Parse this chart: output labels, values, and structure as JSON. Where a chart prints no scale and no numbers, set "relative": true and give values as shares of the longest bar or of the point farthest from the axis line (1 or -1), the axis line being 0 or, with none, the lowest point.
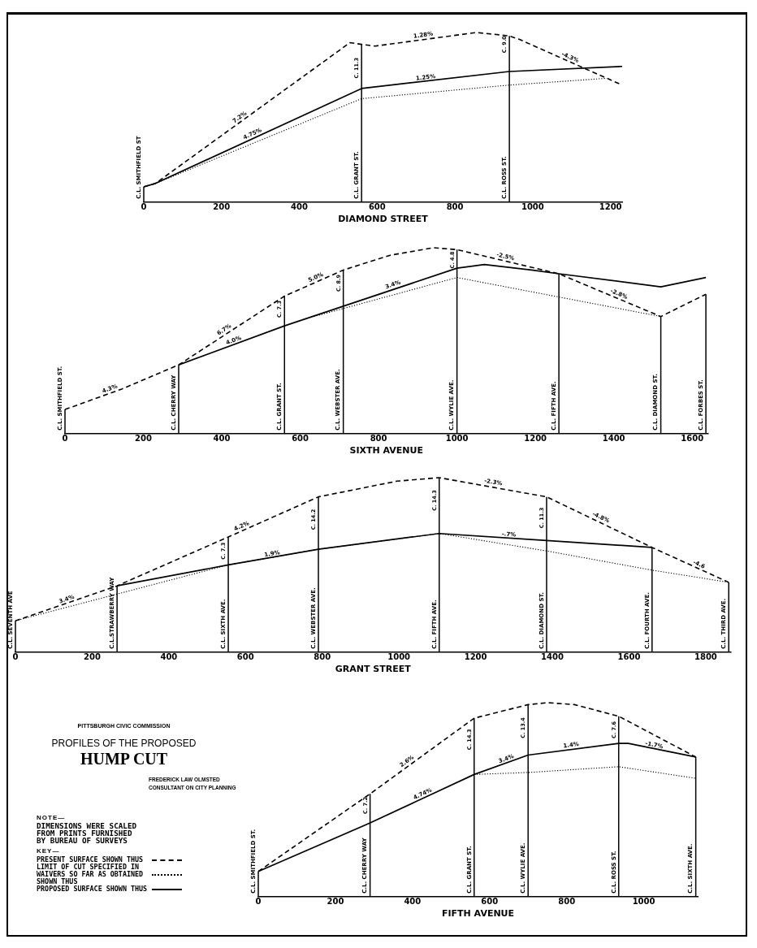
{
  "chart_data": [
    {
      "type": "line",
      "xlabel": "DIAMOND STREET",
      "relative": true,
      "xlim": [
        0,
        1230
      ],
      "xticks": [
        0,
        200,
        400,
        600,
        800,
        1000,
        1200
      ],
      "tick_labels": "x",
      "marker": "none",
      "series": [
        {
          "color": "#000000",
          "line_style": "dashed",
          "x": [
            0,
            30,
            530,
            560,
            595,
            855,
            940,
            965,
            1230
          ],
          "values": [
            0.09,
            0.11,
            0.94,
            0.93,
            0.92,
            1,
            0.98,
            0.96,
            0.69
          ]
        },
        {
          "color": "#000000",
          "line_style": "dotted",
          "x": [
            0,
            30,
            560,
            940,
            1190
          ],
          "values": [
            0.09,
            0.11,
            0.61,
            0.69,
            0.73
          ]
        },
        {
          "color": "#000000",
          "line_style": "solid",
          "x": [
            0,
            30,
            560,
            940,
            1230
          ],
          "values": [
            0.09,
            0.11,
            0.67,
            0.77,
            0.8
          ]
        }
      ],
      "ref_lines": [
        {
          "axis": "x",
          "value": 0,
          "label": "C.L. SMITHFIELD ST"
        },
        {
          "axis": "x",
          "value": 560,
          "label": "C.L. GRANT ST."
        },
        {
          "axis": "x",
          "value": 940,
          "label": "C.L. ROSS ST."
        }
      ],
      "annotations": [
        {
          "text": "7.2%",
          "x": 253,
          "y": 0.48
        },
        {
          "text": "4.75%",
          "x": 284,
          "y": 0.38
        },
        {
          "text": "1.28%",
          "x": 720,
          "y": 0.96
        },
        {
          "text": "1.25%",
          "x": 726,
          "y": 0.71
        },
        {
          "text": "-4.3%",
          "x": 1092,
          "y": 0.83
        },
        {
          "text": "C. 11.3",
          "x": 560,
          "y": 0.79
        },
        {
          "text": "C. 9.0",
          "x": 940,
          "y": 0.93
        }
      ]
    },
    {
      "type": "line",
      "xlabel": "SIXTH AVENUE",
      "relative": true,
      "xlim": [
        0,
        1640
      ],
      "xticks": [
        0,
        200,
        400,
        600,
        800,
        1000,
        1200,
        1400,
        1600
      ],
      "tick_labels": "x",
      "marker": "none",
      "series": [
        {
          "color": "#000000",
          "line_style": "dashed",
          "x": [
            0,
            145,
            290,
            560,
            710,
            830,
            940,
            1000,
            1260,
            1520,
            1635
          ],
          "values": [
            0.13,
            0.24,
            0.37,
            0.74,
            0.88,
            0.96,
            1,
            0.99,
            0.86,
            0.63,
            0.75
          ]
        },
        {
          "color": "#000000",
          "line_style": "dotted",
          "x": [
            635,
            1000,
            1520
          ],
          "values": [
            0.63,
            0.84,
            0.63
          ]
        },
        {
          "color": "#000000",
          "line_style": "solid",
          "x": [
            290,
            560,
            1000,
            1070,
            1190,
            1260,
            1520,
            1635
          ],
          "values": [
            0.37,
            0.58,
            0.89,
            0.91,
            0.88,
            0.86,
            0.79,
            0.84
          ]
        }
      ],
      "ref_lines": [
        {
          "axis": "x",
          "value": 0,
          "label": "C.L. SMITHFIELD ST."
        },
        {
          "axis": "x",
          "value": 290,
          "label": "C.L. CHERRY WAY"
        },
        {
          "axis": "x",
          "value": 560,
          "label": "C.L. GRANT ST."
        },
        {
          "axis": "x",
          "value": 710,
          "label": "C.L. WEBSTER AVE."
        },
        {
          "axis": "x",
          "value": 1000,
          "label": "C.L. WYLIE AVE."
        },
        {
          "axis": "x",
          "value": 1260,
          "label": "C.L. FIFTH AVE."
        },
        {
          "axis": "x",
          "value": 1520,
          "label": "C.L. DIAMOND ST."
        },
        {
          "axis": "x",
          "value": 1635,
          "label": "C.L. FORBES ST."
        }
      ],
      "annotations": [
        {
          "text": "4.3%",
          "x": 118,
          "y": 0.22
        },
        {
          "text": "6.7%",
          "x": 412,
          "y": 0.54
        },
        {
          "text": "4.0%",
          "x": 434,
          "y": 0.48
        },
        {
          "text": "5.0%",
          "x": 644,
          "y": 0.82
        },
        {
          "text": "3.4%",
          "x": 840,
          "y": 0.78
        },
        {
          "text": "-2.5%",
          "x": 1121,
          "y": 0.93
        },
        {
          "text": "-2.8%",
          "x": 1409,
          "y": 0.73
        },
        {
          "text": "C. 7.3",
          "x": 560,
          "y": 0.67
        },
        {
          "text": "C. 8.9",
          "x": 710,
          "y": 0.81
        },
        {
          "text": "C. 4.8",
          "x": 1000,
          "y": 0.935
        }
      ]
    },
    {
      "type": "line",
      "xlabel": "GRANT STREET",
      "relative": true,
      "xlim": [
        0,
        1865
      ],
      "xticks": [
        0,
        200,
        400,
        600,
        800,
        1000,
        1200,
        1400,
        1600,
        1800
      ],
      "tick_labels": "x",
      "marker": "none",
      "series": [
        {
          "color": "#000000",
          "line_style": "dashed",
          "x": [
            0,
            265,
            555,
            790,
            995,
            1105,
            1385,
            1660,
            1860
          ],
          "values": [
            0.18,
            0.38,
            0.66,
            0.89,
            0.98,
            1,
            0.89,
            0.6,
            0.4
          ]
        },
        {
          "color": "#000000",
          "line_style": "dotted",
          "x": [
            0,
            555,
            790,
            1105,
            1385,
            1660,
            1860
          ],
          "values": [
            0.18,
            0.5,
            0.59,
            0.68,
            0.58,
            0.47,
            0.4
          ]
        },
        {
          "color": "#000000",
          "line_style": "solid",
          "x": [
            265,
            555,
            790,
            1105,
            1385,
            1660
          ],
          "values": [
            0.38,
            0.5,
            0.59,
            0.68,
            0.64,
            0.6
          ]
        }
      ],
      "ref_lines": [
        {
          "axis": "x",
          "value": 0,
          "label": "C.L. SEVENTH AVE"
        },
        {
          "axis": "x",
          "value": 265,
          "label": "C.L.STRAWBERRY WAY"
        },
        {
          "axis": "x",
          "value": 555,
          "label": "C.L. SIXTH AVE."
        },
        {
          "axis": "x",
          "value": 790,
          "label": "C.L. WEBSTER AVE."
        },
        {
          "axis": "x",
          "value": 1105,
          "label": "C.L. FIFTH AVE."
        },
        {
          "axis": "x",
          "value": 1385,
          "label": "C.L. DIAMOND ST."
        },
        {
          "axis": "x",
          "value": 1660,
          "label": "C.L. FOURTH AVE."
        },
        {
          "axis": "x",
          "value": 1860,
          "label": "C.L. THIRD AVE."
        }
      ],
      "annotations": [
        {
          "text": "3.4%",
          "x": 137,
          "y": 0.28
        },
        {
          "text": "4.2%",
          "x": 594,
          "y": 0.7
        },
        {
          "text": "1.9%",
          "x": 671,
          "y": 0.54
        },
        {
          "text": "-2.3%",
          "x": 1244,
          "y": 0.95
        },
        {
          "text": "-.7%",
          "x": 1286,
          "y": 0.65
        },
        {
          "text": "-4.8%",
          "x": 1522,
          "y": 0.75
        },
        {
          "text": "-4.6",
          "x": 1778,
          "y": 0.48
        },
        {
          "text": "C. 7.3",
          "x": 555,
          "y": 0.58
        },
        {
          "text": "C. 14.2",
          "x": 790,
          "y": 0.76
        },
        {
          "text": "C. 14.3",
          "x": 1105,
          "y": 0.87
        },
        {
          "text": "C. 11.3",
          "x": 1385,
          "y": 0.77
        }
      ]
    },
    {
      "type": "line",
      "title": "PROFILES OF THE PROPOSED HUMP CUT",
      "xlabel": "FIFTH AVENUE",
      "relative": true,
      "xlim": [
        0,
        1140
      ],
      "xticks": [
        0,
        200,
        400,
        600,
        800,
        1000
      ],
      "tick_labels": "x",
      "marker": "none",
      "legend": "left",
      "legend_title": "KEY—",
      "series": [
        {
          "name": "PRESENT SURFACE SHOWN THUS",
          "color": "#000000",
          "line_style": "dashed",
          "x": [
            0,
            290,
            560,
            700,
            750,
            820,
            935,
            1135
          ],
          "values": [
            0.13,
            0.53,
            0.92,
            0.99,
            1,
            0.99,
            0.93,
            0.72
          ]
        },
        {
          "name": "LIMIT OF CUT SPECIFIED IN WAIVERS SO FAR AS OBTAINED SHOWN THUS",
          "color": "#000000",
          "line_style": "dotted",
          "x": [
            560,
            700,
            935,
            1135
          ],
          "values": [
            0.63,
            0.64,
            0.67,
            0.61
          ]
        },
        {
          "name": "PROPOSED SURFACE SHOWN THUS",
          "color": "#000000",
          "line_style": "solid",
          "x": [
            0,
            290,
            560,
            700,
            935,
            960,
            1135
          ],
          "values": [
            0.13,
            0.38,
            0.63,
            0.73,
            0.79,
            0.79,
            0.72
          ]
        }
      ],
      "ref_lines": [
        {
          "axis": "x",
          "value": 0,
          "label": "C.L. SMITHFIELD ST."
        },
        {
          "axis": "x",
          "value": 290,
          "label": "C.L. CHERRY WAY"
        },
        {
          "axis": "x",
          "value": 560,
          "label": "C.L. GRANT ST."
        },
        {
          "axis": "x",
          "value": 700,
          "label": "C.L. WYLIE AVE."
        },
        {
          "axis": "x",
          "value": 935,
          "label": "C.L. ROSS ST."
        },
        {
          "axis": "x",
          "value": 1135,
          "label": "C.L. SIXTH AVE."
        }
      ],
      "annotations": [
        "PITTSBURGH CIVIC COMMISSION",
        "FREDERICK LAW OLMSTED CONSULTANT ON CITY PLANNING",
        "NOTE—",
        "DIMENSIONS WERE SCALED FROM PRINTS FURNISHED BY BUREAU OF SURVEYS",
        {
          "text": "2.6%",
          "x": 392,
          "y": 0.68
        },
        {
          "text": "4.74%",
          "x": 431,
          "y": 0.51
        },
        {
          "text": "3.4%",
          "x": 647,
          "y": 0.69
        },
        {
          "text": "1.4%",
          "x": 813,
          "y": 0.76
        },
        {
          "text": "-1.7%",
          "x": 1025,
          "y": 0.76
        },
        {
          "text": "C. 7.2",
          "x": 290,
          "y": 0.47
        },
        {
          "text": "C. 14.3",
          "x": 560,
          "y": 0.81
        },
        {
          "text": "C. 13.4",
          "x": 700,
          "y": 0.87
        },
        {
          "text": "C. 7.6",
          "x": 935,
          "y": 0.86
        }
      ]
    }
  ]
}
